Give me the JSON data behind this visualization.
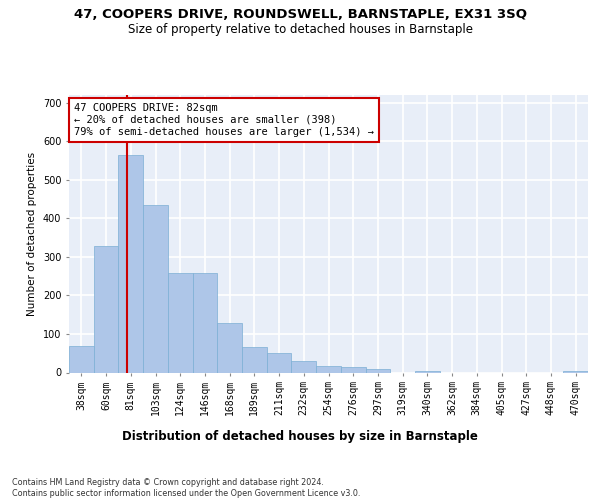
{
  "title": "47, COOPERS DRIVE, ROUNDSWELL, BARNSTAPLE, EX31 3SQ",
  "subtitle": "Size of property relative to detached houses in Barnstaple",
  "xlabel": "Distribution of detached houses by size in Barnstaple",
  "ylabel": "Number of detached properties",
  "categories": [
    "38sqm",
    "60sqm",
    "81sqm",
    "103sqm",
    "124sqm",
    "146sqm",
    "168sqm",
    "189sqm",
    "211sqm",
    "232sqm",
    "254sqm",
    "276sqm",
    "297sqm",
    "319sqm",
    "340sqm",
    "362sqm",
    "384sqm",
    "405sqm",
    "427sqm",
    "448sqm",
    "470sqm"
  ],
  "values": [
    70,
    328,
    565,
    435,
    258,
    258,
    128,
    65,
    50,
    30,
    18,
    15,
    10,
    0,
    5,
    0,
    0,
    0,
    0,
    0,
    4
  ],
  "bar_color": "#aec6e8",
  "bar_edge_color": "#7bafd4",
  "background_color": "#e8eef8",
  "grid_color": "#ffffff",
  "property_line_x": 1.85,
  "annotation_text": "47 COOPERS DRIVE: 82sqm\n← 20% of detached houses are smaller (398)\n79% of semi-detached houses are larger (1,534) →",
  "annotation_box_color": "#ffffff",
  "annotation_box_edge": "#cc0000",
  "vline_color": "#cc0000",
  "ylim": [
    0,
    720
  ],
  "yticks": [
    0,
    100,
    200,
    300,
    400,
    500,
    600,
    700
  ],
  "footer": "Contains HM Land Registry data © Crown copyright and database right 2024.\nContains public sector information licensed under the Open Government Licence v3.0.",
  "title_fontsize": 9.5,
  "subtitle_fontsize": 8.5,
  "xlabel_fontsize": 8.5,
  "ylabel_fontsize": 7.5,
  "tick_fontsize": 7.0,
  "annot_fontsize": 7.5,
  "footer_fontsize": 5.8
}
